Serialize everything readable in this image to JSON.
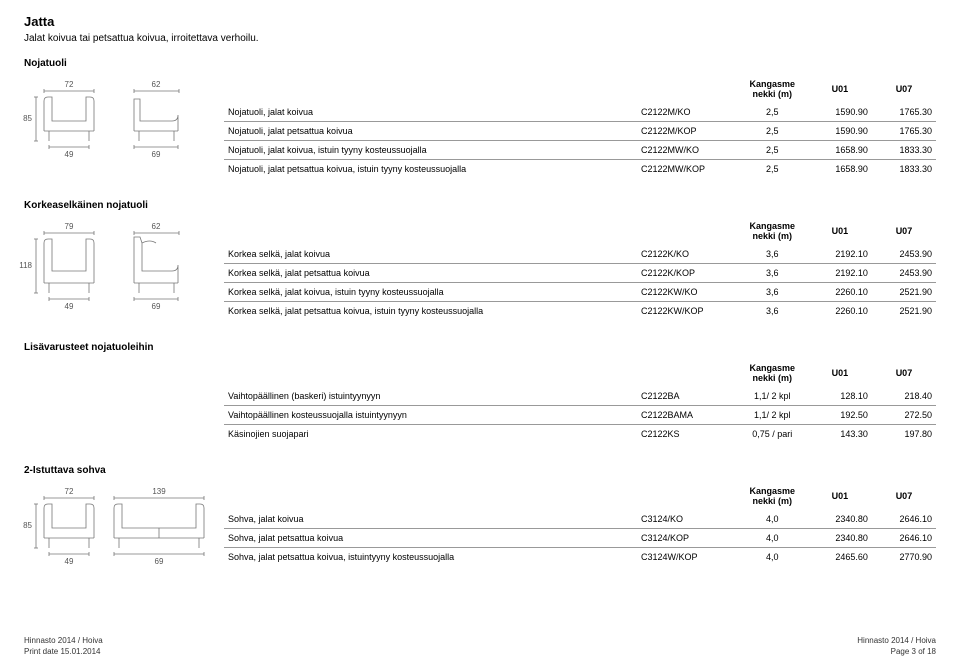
{
  "page": {
    "title": "Jatta",
    "subtitle": "Jalat koivua tai petsattua koivua, irroitettava verhoilu."
  },
  "colhead": {
    "unit": "Kangasme\nnekki (m)",
    "u01": "U01",
    "u07": "U07"
  },
  "sections": {
    "s1": {
      "name": "Nojatuoli",
      "dims": {
        "w1": "72",
        "w2": "62",
        "h": "85",
        "d1": "49",
        "d2": "69"
      },
      "rows": [
        {
          "desc": "Nojatuoli, jalat koivua",
          "code": "C2122M/KO",
          "unit": "2,5",
          "u01": "1590.90",
          "u07": "1765.30"
        },
        {
          "desc": "Nojatuoli, jalat petsattua koivua",
          "code": "C2122M/KOP",
          "unit": "2,5",
          "u01": "1590.90",
          "u07": "1765.30"
        },
        {
          "desc": "Nojatuoli, jalat koivua, istuin tyyny kosteussuojalla",
          "code": "C2122MW/KO",
          "unit": "2,5",
          "u01": "1658.90",
          "u07": "1833.30"
        },
        {
          "desc": "Nojatuoli, jalat petsattua koivua, istuin tyyny kosteussuojalla",
          "code": "C2122MW/KOP",
          "unit": "2,5",
          "u01": "1658.90",
          "u07": "1833.30"
        }
      ]
    },
    "s2": {
      "name": "Korkeaselkäinen nojatuoli",
      "dims": {
        "w1": "79",
        "w2": "62",
        "h": "118",
        "d1": "49",
        "d2": "69"
      },
      "rows": [
        {
          "desc": "Korkea selkä, jalat koivua",
          "code": "C2122K/KO",
          "unit": "3,6",
          "u01": "2192.10",
          "u07": "2453.90"
        },
        {
          "desc": "Korkea selkä, jalat petsattua koivua",
          "code": "C2122K/KOP",
          "unit": "3,6",
          "u01": "2192.10",
          "u07": "2453.90"
        },
        {
          "desc": "Korkea selkä, jalat koivua, istuin tyyny kosteussuojalla",
          "code": "C2122KW/KO",
          "unit": "3,6",
          "u01": "2260.10",
          "u07": "2521.90"
        },
        {
          "desc": "Korkea selkä, jalat petsattua koivua, istuin tyyny kosteussuojalla",
          "code": "C2122KW/KOP",
          "unit": "3,6",
          "u01": "2260.10",
          "u07": "2521.90"
        }
      ]
    },
    "s3": {
      "name": "Lisävarusteet nojatuoleihin",
      "rows": [
        {
          "desc": "Vaihtopäällinen (baskeri) istuintyynyyn",
          "code": "C2122BA",
          "unit": "1,1/ 2 kpl",
          "u01": "128.10",
          "u07": "218.40"
        },
        {
          "desc": "Vaihtopäällinen kosteussuojalla istuintyynyyn",
          "code": "C2122BAMA",
          "unit": "1,1/ 2 kpl",
          "u01": "192.50",
          "u07": "272.50"
        },
        {
          "desc": "Käsinojien suojapari",
          "code": "C2122KS",
          "unit": "0,75 / pari",
          "u01": "143.30",
          "u07": "197.80"
        }
      ]
    },
    "s4": {
      "name": "2-Istuttava sohva",
      "dims": {
        "w1": "72",
        "w2": "139",
        "h": "85",
        "d1": "49",
        "d2": "69"
      },
      "rows": [
        {
          "desc": "Sohva, jalat koivua",
          "code": "C3124/KO",
          "unit": "4,0",
          "u01": "2340.80",
          "u07": "2646.10"
        },
        {
          "desc": "Sohva, jalat petsattua koivua",
          "code": "C3124/KOP",
          "unit": "4,0",
          "u01": "2340.80",
          "u07": "2646.10"
        },
        {
          "desc": "Sohva, jalat petsattua koivua, istuintyyny kosteussuojalla",
          "code": "C3124W/KOP",
          "unit": "4,0",
          "u01": "2465.60",
          "u07": "2770.90"
        }
      ]
    }
  },
  "footer": {
    "left1": "Hinnasto 2014 / Hoiva",
    "left2": "Print date 15.01.2014",
    "right1": "Hinnasto 2014 / Hoiva",
    "right2": "Page 3 of 18"
  }
}
